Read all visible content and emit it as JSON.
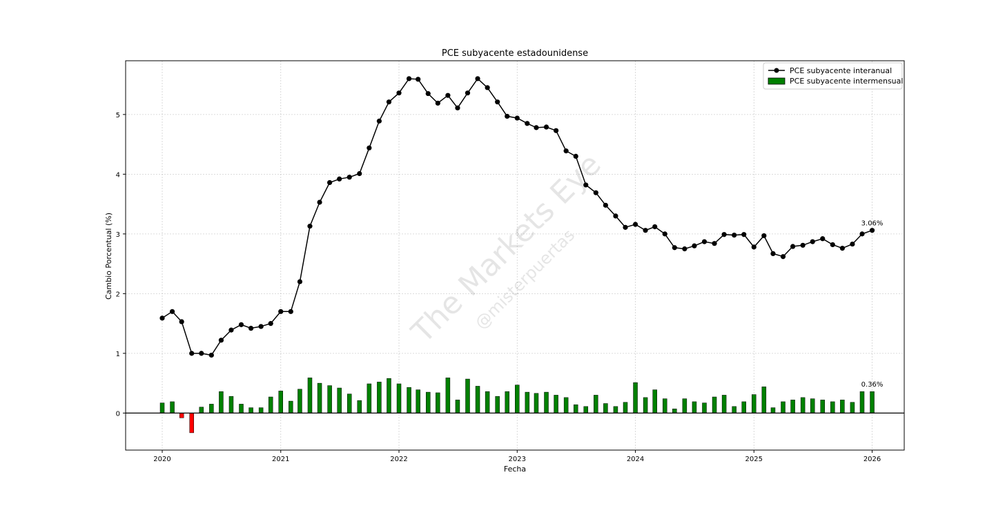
{
  "chart_data": {
    "type": "bar+line",
    "title": "PCE subyacente estadounidense",
    "xlabel": "Fecha",
    "ylabel": "Cambio Porcentual (%)",
    "x_tick_labels": [
      "2020",
      "2021",
      "2022",
      "2023",
      "2024",
      "2025",
      "2026"
    ],
    "y_tick_labels": [
      "0",
      "1",
      "2",
      "3",
      "4",
      "5"
    ],
    "ylim": [
      -0.62,
      5.9
    ],
    "xlim": [
      "2019-09-10",
      "2026-04-10"
    ],
    "grid": true,
    "legend_position": "top-right",
    "x": [
      "2020-01",
      "2020-02",
      "2020-03",
      "2020-04",
      "2020-05",
      "2020-06",
      "2020-07",
      "2020-08",
      "2020-09",
      "2020-10",
      "2020-11",
      "2020-12",
      "2021-01",
      "2021-02",
      "2021-03",
      "2021-04",
      "2021-05",
      "2021-06",
      "2021-07",
      "2021-08",
      "2021-09",
      "2021-10",
      "2021-11",
      "2021-12",
      "2022-01",
      "2022-02",
      "2022-03",
      "2022-04",
      "2022-05",
      "2022-06",
      "2022-07",
      "2022-08",
      "2022-09",
      "2022-10",
      "2022-11",
      "2022-12",
      "2023-01",
      "2023-02",
      "2023-03",
      "2023-04",
      "2023-05",
      "2023-06",
      "2023-07",
      "2023-08",
      "2023-09",
      "2023-10",
      "2023-11",
      "2023-12",
      "2024-01",
      "2024-02",
      "2024-03",
      "2024-04",
      "2024-05",
      "2024-06",
      "2024-07",
      "2024-08",
      "2024-09",
      "2024-10",
      "2024-11",
      "2024-12",
      "2025-01",
      "2025-02",
      "2025-03",
      "2025-04",
      "2025-05",
      "2025-06",
      "2025-07",
      "2025-08",
      "2025-09",
      "2025-10",
      "2025-11",
      "2025-12",
      "2026-01"
    ],
    "series": [
      {
        "name": "PCE subyacente interanual",
        "type": "line",
        "color": "#000000",
        "values": [
          1.59,
          1.7,
          1.53,
          1.0,
          1.0,
          0.97,
          1.22,
          1.39,
          1.48,
          1.42,
          1.45,
          1.5,
          1.7,
          1.7,
          2.2,
          3.13,
          3.53,
          3.86,
          3.92,
          3.95,
          4.01,
          4.44,
          4.89,
          5.21,
          5.36,
          5.6,
          5.59,
          5.35,
          5.19,
          5.32,
          5.11,
          5.36,
          5.6,
          5.45,
          5.21,
          4.97,
          4.94,
          4.85,
          4.78,
          4.79,
          4.73,
          4.39,
          4.3,
          3.82,
          3.69,
          3.48,
          3.3,
          3.11,
          3.16,
          3.06,
          3.12,
          3.0,
          2.77,
          2.75,
          2.8,
          2.87,
          2.84,
          2.99,
          2.98,
          2.99,
          2.78,
          2.97,
          2.67,
          2.62,
          2.79,
          2.81,
          2.87,
          2.92,
          2.82,
          2.76,
          2.83,
          3.0,
          3.06
        ]
      },
      {
        "name": "PCE subyacente intermensual",
        "type": "bar",
        "color": "#008000",
        "negative_color": "#ff0000",
        "values": [
          0.17,
          0.19,
          -0.08,
          -0.33,
          0.1,
          0.15,
          0.36,
          0.28,
          0.15,
          0.09,
          0.09,
          0.27,
          0.37,
          0.2,
          0.4,
          0.59,
          0.5,
          0.46,
          0.42,
          0.32,
          0.21,
          0.49,
          0.52,
          0.58,
          0.49,
          0.43,
          0.39,
          0.35,
          0.34,
          0.59,
          0.22,
          0.57,
          0.45,
          0.36,
          0.28,
          0.36,
          0.47,
          0.35,
          0.33,
          0.35,
          0.3,
          0.26,
          0.14,
          0.11,
          0.3,
          0.16,
          0.11,
          0.18,
          0.51,
          0.26,
          0.39,
          0.24,
          0.07,
          0.24,
          0.19,
          0.17,
          0.27,
          0.3,
          0.11,
          0.19,
          0.31,
          0.44,
          0.09,
          0.19,
          0.22,
          0.26,
          0.24,
          0.22,
          0.19,
          0.22,
          0.18,
          0.36,
          0.36
        ]
      }
    ],
    "annotations": [
      {
        "text": "3.06%",
        "x": "2026-01",
        "y": 3.06
      },
      {
        "text": "0.36%",
        "x": "2026-01",
        "y": 0.36
      }
    ],
    "watermark": {
      "main": "The Markets Eye",
      "sub": "@misterpuertas"
    }
  }
}
